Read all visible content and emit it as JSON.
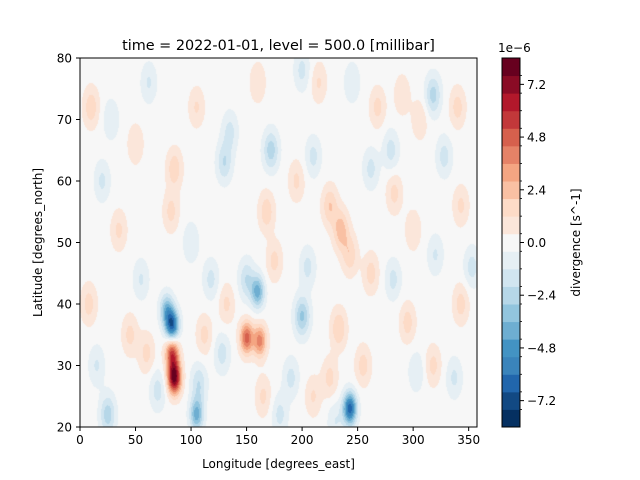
{
  "chart_data": {
    "type": "heatmap",
    "title": "time = 2022-01-01, level = 500.0 [millibar]",
    "xlabel": "Longitude [degrees_east]",
    "ylabel": "Latitude [degrees_north]",
    "xlim": [
      0,
      357.5
    ],
    "ylim": [
      20,
      80
    ],
    "xticks": [
      "0",
      "50",
      "100",
      "150",
      "200",
      "250",
      "300",
      "350"
    ],
    "yticks": [
      "20",
      "30",
      "40",
      "50",
      "60",
      "70",
      "80"
    ],
    "colorbar": {
      "label": "divergence [s^-1]",
      "offset_text": "1e−6",
      "tick_labels": [
        "−7.2",
        "−4.8",
        "−2.4",
        "0.0",
        "2.4",
        "4.8",
        "7.2"
      ],
      "tick_values": [
        -7.2,
        -4.8,
        -2.4,
        0.0,
        2.4,
        4.8,
        7.2
      ],
      "range": [
        -8.4,
        8.4
      ],
      "colors": [
        "#053061",
        "#124983",
        "#2166ac",
        "#3a84bb",
        "#4393c3",
        "#6eaed1",
        "#92c5de",
        "#b6d7e8",
        "#d1e5f0",
        "#e6eff4",
        "#f7f7f7",
        "#fbe6da",
        "#fddbc7",
        "#f9c0a3",
        "#f4a582",
        "#e58267",
        "#d6604d",
        "#c2383a",
        "#b2182b",
        "#8a0b25",
        "#67001f"
      ]
    },
    "features": [
      {
        "lon": 85,
        "lat": 28,
        "value": 8.0
      },
      {
        "lon": 83,
        "lat": 32,
        "value": 5.5
      },
      {
        "lon": 83,
        "lat": 36.5,
        "value": -6.5
      },
      {
        "lon": 78,
        "lat": 39,
        "value": -3.5
      },
      {
        "lon": 150,
        "lat": 34.5,
        "value": 4.8
      },
      {
        "lon": 162,
        "lat": 34,
        "value": 4.0
      },
      {
        "lon": 160,
        "lat": 42,
        "value": -4.0
      },
      {
        "lon": 150,
        "lat": 44,
        "value": -2.0
      },
      {
        "lon": 243,
        "lat": 23,
        "value": -6.5
      },
      {
        "lon": 105,
        "lat": 22,
        "value": -4.0
      },
      {
        "lon": 107,
        "lat": 27,
        "value": -2.0
      },
      {
        "lon": 25,
        "lat": 22,
        "value": -2.5
      },
      {
        "lon": 200,
        "lat": 38,
        "value": -3.0
      },
      {
        "lon": 172,
        "lat": 65,
        "value": -2.5
      },
      {
        "lon": 235,
        "lat": 52,
        "value": 2.5
      },
      {
        "lon": 225,
        "lat": 56,
        "value": 2.0
      },
      {
        "lon": 243,
        "lat": 48,
        "value": 1.8
      },
      {
        "lon": 233,
        "lat": 36,
        "value": 2.0
      },
      {
        "lon": 225,
        "lat": 28,
        "value": 1.5
      },
      {
        "lon": 130,
        "lat": 63,
        "value": -2.0
      },
      {
        "lon": 135,
        "lat": 68,
        "value": -1.5
      },
      {
        "lon": 85,
        "lat": 62,
        "value": 1.8
      },
      {
        "lon": 82,
        "lat": 55,
        "value": 1.5
      },
      {
        "lon": 280,
        "lat": 65,
        "value": -1.6
      },
      {
        "lon": 262,
        "lat": 62,
        "value": -1.5
      },
      {
        "lon": 268,
        "lat": 72,
        "value": 1.5
      },
      {
        "lon": 262,
        "lat": 45,
        "value": 1.6
      },
      {
        "lon": 255,
        "lat": 30,
        "value": 1.6
      },
      {
        "lon": 283,
        "lat": 58,
        "value": 1.5
      },
      {
        "lon": 282,
        "lat": 44,
        "value": -1.5
      },
      {
        "lon": 295,
        "lat": 37,
        "value": 1.6
      },
      {
        "lon": 303,
        "lat": 29,
        "value": -1.2
      },
      {
        "lon": 318,
        "lat": 30,
        "value": 1.5
      },
      {
        "lon": 337,
        "lat": 28,
        "value": -1.4
      },
      {
        "lon": 343,
        "lat": 40,
        "value": 1.6
      },
      {
        "lon": 353,
        "lat": 46,
        "value": -1.6
      },
      {
        "lon": 343,
        "lat": 56,
        "value": 1.4
      },
      {
        "lon": 318,
        "lat": 74,
        "value": -2.4
      },
      {
        "lon": 328,
        "lat": 64,
        "value": -1.6
      },
      {
        "lon": 306,
        "lat": 70,
        "value": 1.2
      },
      {
        "lon": 340,
        "lat": 72,
        "value": 1.6
      },
      {
        "lon": 290,
        "lat": 74,
        "value": 1.2
      },
      {
        "lon": 200,
        "lat": 78,
        "value": -1.5
      },
      {
        "lon": 215,
        "lat": 76,
        "value": 1.3
      },
      {
        "lon": 195,
        "lat": 60,
        "value": 1.4
      },
      {
        "lon": 210,
        "lat": 64,
        "value": -1.5
      },
      {
        "lon": 168,
        "lat": 55,
        "value": 1.8
      },
      {
        "lon": 175,
        "lat": 47,
        "value": 1.5
      },
      {
        "lon": 118,
        "lat": 44,
        "value": -1.5
      },
      {
        "lon": 112,
        "lat": 35,
        "value": 1.5
      },
      {
        "lon": 128,
        "lat": 32,
        "value": -1.6
      },
      {
        "lon": 132,
        "lat": 40,
        "value": 1.4
      },
      {
        "lon": 190,
        "lat": 28,
        "value": -1.5
      },
      {
        "lon": 210,
        "lat": 25,
        "value": 1.3
      },
      {
        "lon": 230,
        "lat": 21,
        "value": -1.2
      },
      {
        "lon": 205,
        "lat": 46,
        "value": -1.5
      },
      {
        "lon": 180,
        "lat": 22,
        "value": -1.5
      },
      {
        "lon": 165,
        "lat": 25,
        "value": 1.4
      },
      {
        "lon": 45,
        "lat": 35,
        "value": 1.5
      },
      {
        "lon": 55,
        "lat": 44,
        "value": -1.3
      },
      {
        "lon": 35,
        "lat": 52,
        "value": 1.4
      },
      {
        "lon": 20,
        "lat": 60,
        "value": -1.4
      },
      {
        "lon": 10,
        "lat": 72,
        "value": 1.8
      },
      {
        "lon": 28,
        "lat": 70,
        "value": -1.2
      },
      {
        "lon": 50,
        "lat": 66,
        "value": 1.2
      },
      {
        "lon": 62,
        "lat": 76,
        "value": -1.3
      },
      {
        "lon": 70,
        "lat": 26,
        "value": -1.6
      },
      {
        "lon": 60,
        "lat": 32,
        "value": 1.5
      },
      {
        "lon": 8,
        "lat": 40,
        "value": 1.6
      },
      {
        "lon": 15,
        "lat": 30,
        "value": -1.3
      },
      {
        "lon": 100,
        "lat": 50,
        "value": -1.2
      },
      {
        "lon": 105,
        "lat": 72,
        "value": 1.3
      },
      {
        "lon": 160,
        "lat": 76,
        "value": 1.2
      },
      {
        "lon": 245,
        "lat": 76,
        "value": -1.2
      },
      {
        "lon": 320,
        "lat": 48,
        "value": -1.3
      },
      {
        "lon": 300,
        "lat": 52,
        "value": 1.2
      }
    ]
  }
}
